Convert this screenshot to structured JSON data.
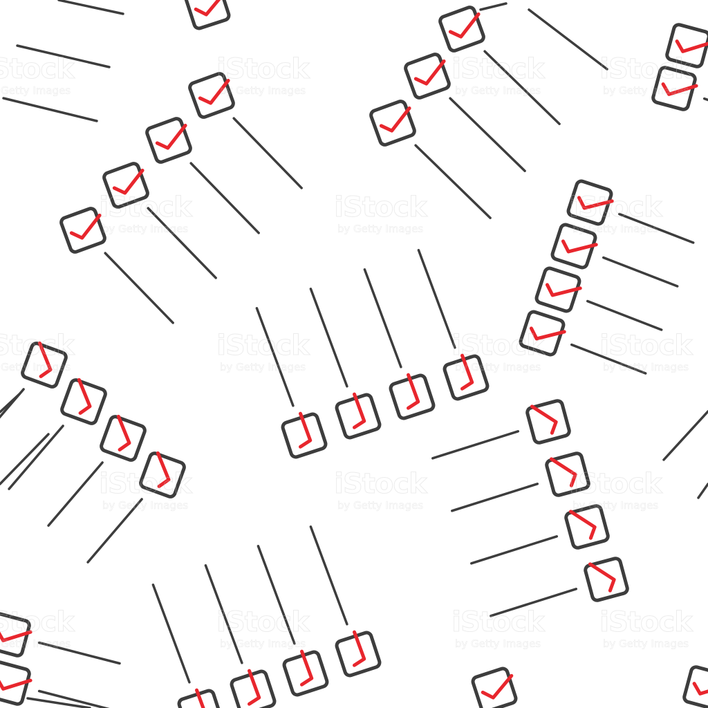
{
  "pattern": {
    "description_icon": "checklist-icon",
    "check_icon": "checkmark-icon",
    "box_icon": "checkbox-icon",
    "colors": {
      "background": "#ffffff",
      "box_stroke": "#3d3d3d",
      "line_stroke": "#3d3d3d",
      "check": "#e8262d"
    }
  },
  "watermark": {
    "logo": "iStock",
    "credit": "by Getty Images"
  }
}
